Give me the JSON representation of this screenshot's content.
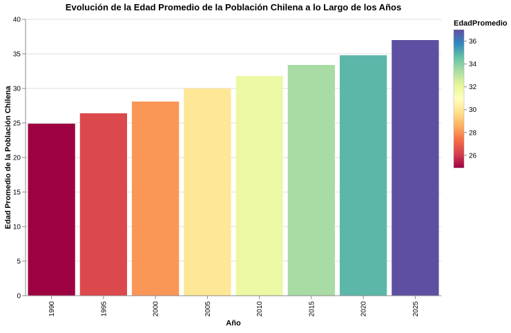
{
  "chart_data": {
    "type": "bar",
    "title": "Evolución de la Edad Promedio de la Población Chilena a lo Largo de los Años",
    "xlabel": "Año",
    "ylabel": "Edad Promedio de la Población Chilena",
    "categories": [
      "1990",
      "1995",
      "2000",
      "2005",
      "2010",
      "2015",
      "2020",
      "2025"
    ],
    "values": [
      24.9,
      26.4,
      28.1,
      30.0,
      31.8,
      33.4,
      34.8,
      37.0
    ],
    "ylim": [
      0,
      40
    ],
    "yticks": [
      "0",
      "5",
      "10",
      "15",
      "20",
      "25",
      "30",
      "35",
      "40"
    ],
    "grid": true,
    "color_scale": "spectral",
    "legend": {
      "title": "EdadPromedio",
      "placement": "right",
      "domain": [
        24.9,
        37.0
      ],
      "ticks": [
        "26",
        "28",
        "30",
        "32",
        "34",
        "36"
      ]
    }
  }
}
